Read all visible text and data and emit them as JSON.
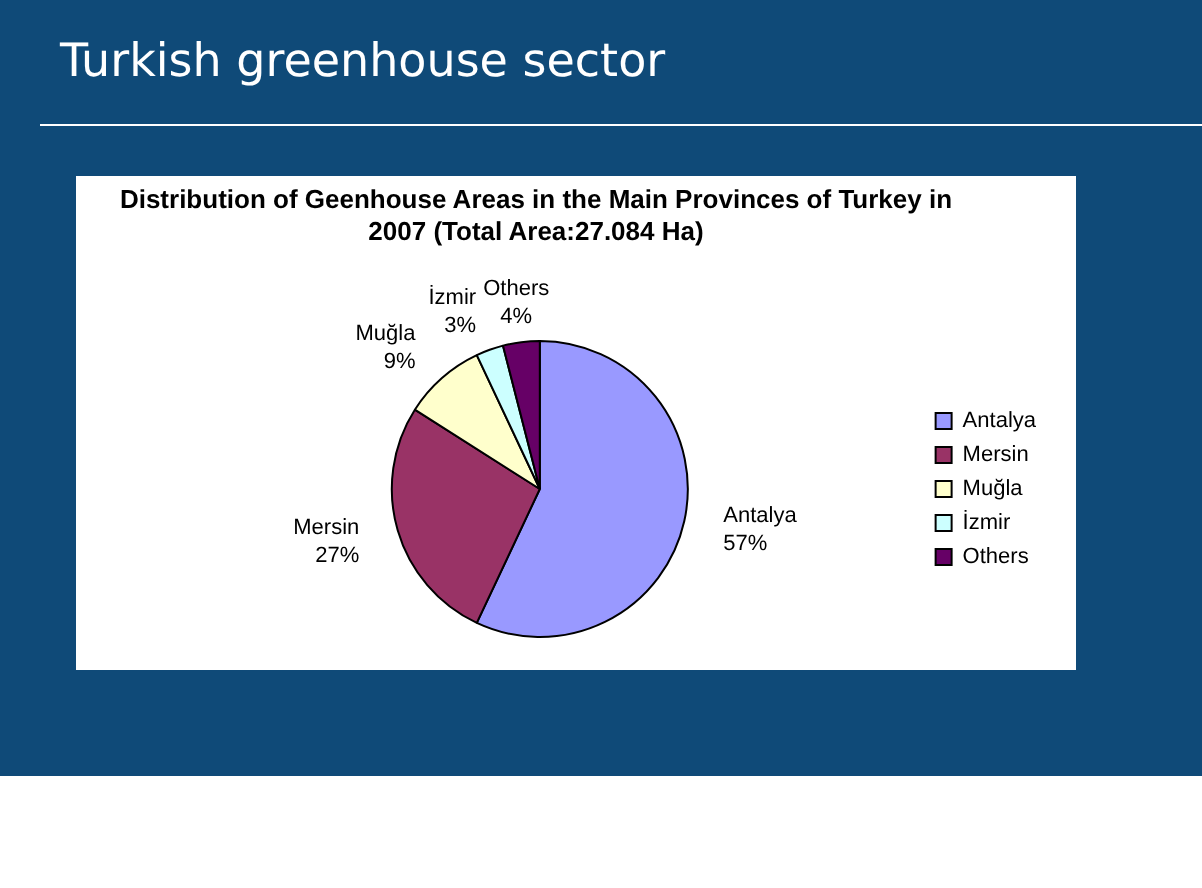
{
  "chart_data": {
    "type": "pie",
    "title": "Distribution of Geenhouse Areas in the Main Provinces of Turkey in 2007 (Total Area:27.084 Ha)",
    "annotations": [
      "Turkish greenhouse sector"
    ],
    "categories": [
      "Antalya",
      "Mersin",
      "Muğla",
      "İzmir",
      "Others"
    ],
    "values": [
      57,
      27,
      9,
      3,
      4
    ],
    "value_labels": [
      "57%",
      "27%",
      "9%",
      "3%",
      "4%"
    ],
    "colors": [
      "#9999ff",
      "#993366",
      "#ffffcc",
      "#ccffff",
      "#660066"
    ],
    "legend": "right"
  }
}
